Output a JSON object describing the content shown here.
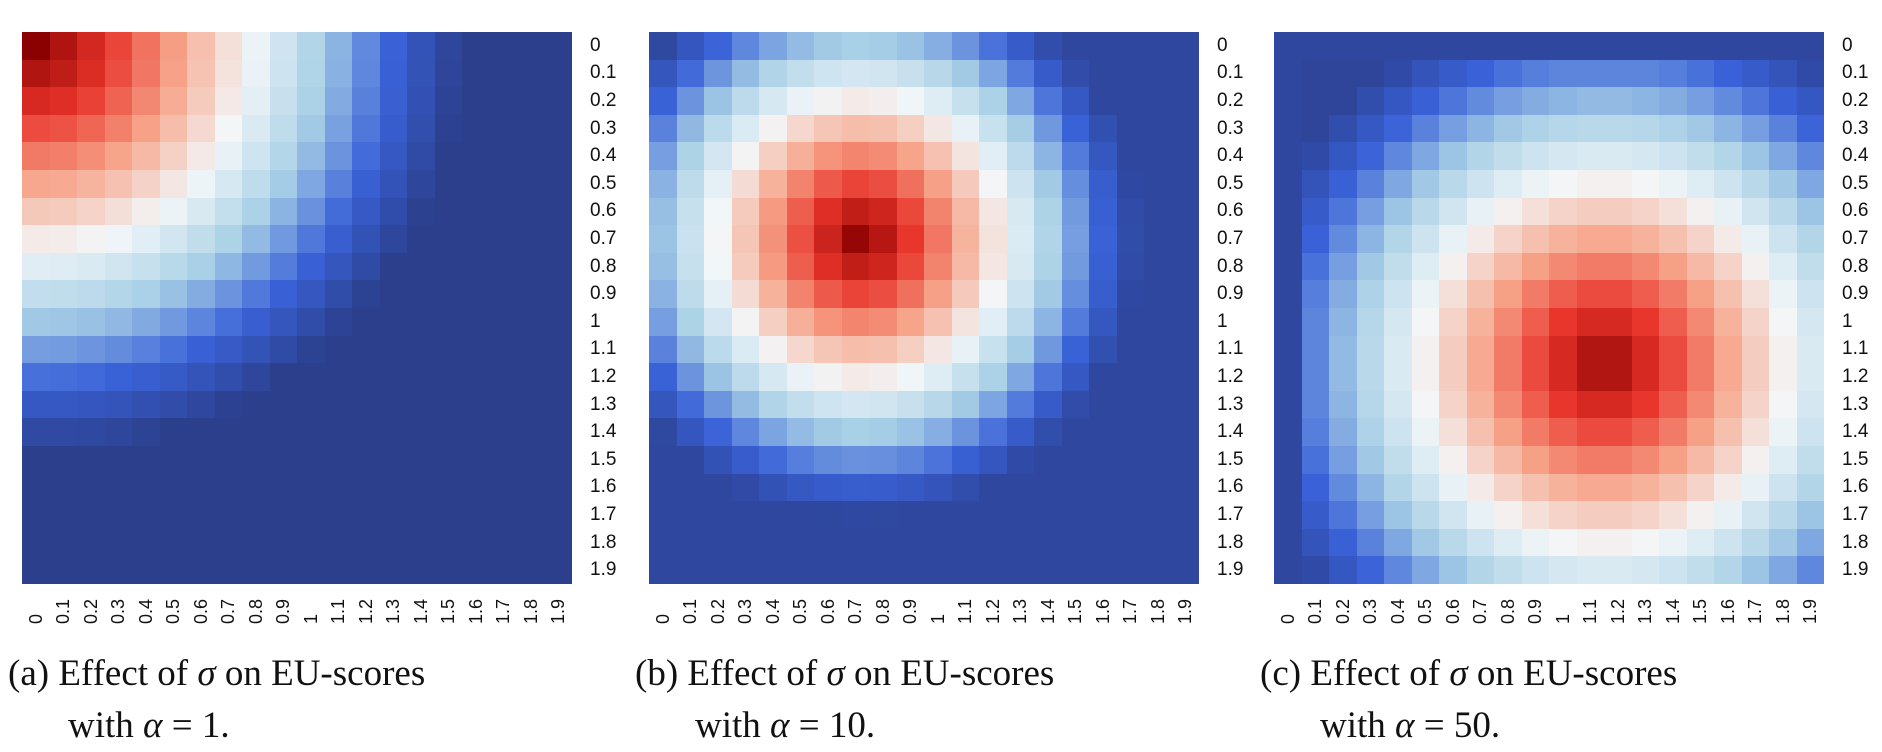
{
  "ticks": [
    "0",
    "0.1",
    "0.2",
    "0.3",
    "0.4",
    "0.5",
    "0.6",
    "0.7",
    "0.8",
    "0.9",
    "1",
    "1.1",
    "1.2",
    "1.3",
    "1.4",
    "1.5",
    "1.6",
    "1.7",
    "1.8",
    "1.9"
  ],
  "panels": [
    {
      "tag": "(a)",
      "caption_pre": "Effect of",
      "sym_sigma": "σ",
      "caption_mid": "on EU-scores",
      "line2_pre": "with",
      "sym_alpha": "α",
      "line2_eq": "= 1."
    },
    {
      "tag": "(b)",
      "caption_pre": "Effect of",
      "sym_sigma": "σ",
      "caption_mid": "on EU-scores",
      "line2_pre": "with",
      "sym_alpha": "α",
      "line2_eq": "= 10."
    },
    {
      "tag": "(c)",
      "caption_pre": "Effect of",
      "sym_sigma": "σ",
      "caption_mid": "on EU-scores",
      "line2_pre": "with",
      "sym_alpha": "α",
      "line2_eq": "= 50."
    }
  ],
  "chart_data": [
    {
      "type": "heatmap",
      "alpha": 1,
      "x": [
        0,
        0.1,
        0.2,
        0.3,
        0.4,
        0.5,
        0.6,
        0.7,
        0.8,
        0.9,
        1,
        1.1,
        1.2,
        1.3,
        1.4,
        1.5,
        1.6,
        1.7,
        1.8,
        1.9
      ],
      "y": [
        0,
        0.1,
        0.2,
        0.3,
        0.4,
        0.5,
        0.6,
        0.7,
        0.8,
        0.9,
        1,
        1.1,
        1.2,
        1.3,
        1.4,
        1.5,
        1.6,
        1.7,
        1.8,
        1.9
      ],
      "pattern": "high values at top-left corner, decreasing toward bottom-right",
      "colorscale": [
        "#2b3f8c",
        "#3a62d8",
        "#a8d0e6",
        "#f3f7f9",
        "#f7a58a",
        "#e8332a",
        "#8b0000"
      ]
    },
    {
      "type": "heatmap",
      "alpha": 10,
      "x": [
        0,
        0.1,
        0.2,
        0.3,
        0.4,
        0.5,
        0.6,
        0.7,
        0.8,
        0.9,
        1,
        1.1,
        1.2,
        1.3,
        1.4,
        1.5,
        1.6,
        1.7,
        1.8,
        1.9
      ],
      "y": [
        0,
        0.1,
        0.2,
        0.3,
        0.4,
        0.5,
        0.6,
        0.7,
        0.8,
        0.9,
        1,
        1.1,
        1.2,
        1.3,
        1.4,
        1.5,
        1.6,
        1.7,
        1.8,
        1.9
      ],
      "pattern": "peak near x≈0.7, y≈0.7 decreasing radially",
      "colorscale": [
        "#2b3f8c",
        "#3a62d8",
        "#a8d0e6",
        "#f3f7f9",
        "#f7a58a",
        "#e8332a",
        "#8b0000"
      ]
    },
    {
      "type": "heatmap",
      "alpha": 50,
      "x": [
        0,
        0.1,
        0.2,
        0.3,
        0.4,
        0.5,
        0.6,
        0.7,
        0.8,
        0.9,
        1,
        1.1,
        1.2,
        1.3,
        1.4,
        1.5,
        1.6,
        1.7,
        1.8,
        1.9
      ],
      "y": [
        0,
        0.1,
        0.2,
        0.3,
        0.4,
        0.5,
        0.6,
        0.7,
        0.8,
        0.9,
        1,
        1.1,
        1.2,
        1.3,
        1.4,
        1.5,
        1.6,
        1.7,
        1.8,
        1.9
      ],
      "pattern": "peak near x≈1.1, y≈1.1, low values along top rows and left columns",
      "colorscale": [
        "#2b3f8c",
        "#3a62d8",
        "#a8d0e6",
        "#f3f7f9",
        "#f7a58a",
        "#e8332a",
        "#8b0000"
      ]
    }
  ]
}
